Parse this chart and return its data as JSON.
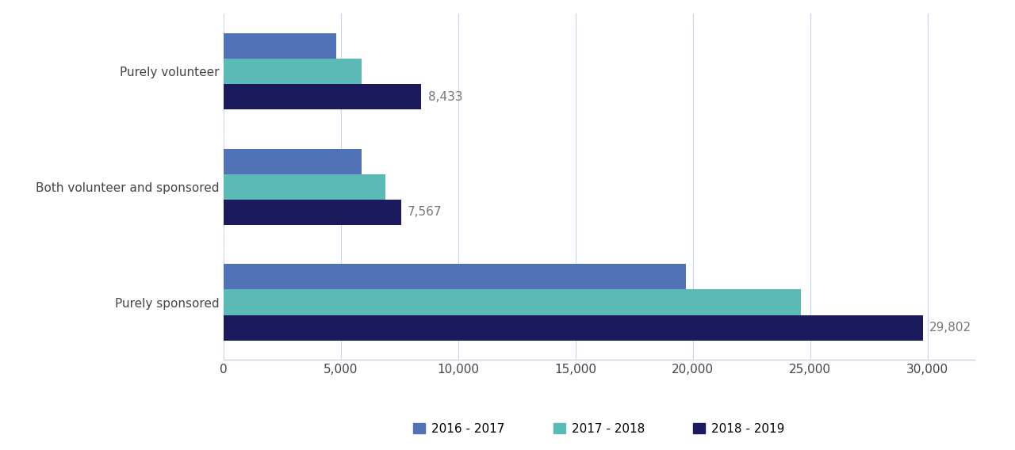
{
  "categories": [
    "Purely sponsored",
    "Both volunteer and sponsored",
    "Purely volunteer"
  ],
  "series": [
    {
      "label": "2016 - 2017",
      "color": "#5272b8",
      "values": [
        19700,
        5900,
        4800
      ]
    },
    {
      "label": "2017 - 2018",
      "color": "#5bbab5",
      "values": [
        24600,
        6900,
        5900
      ]
    },
    {
      "label": "2018 - 2019",
      "color": "#1a1a5c",
      "values": [
        29802,
        7567,
        8433
      ]
    }
  ],
  "annotated_values": [
    29802,
    7567,
    8433
  ],
  "xlim": [
    0,
    32000
  ],
  "xticks": [
    0,
    5000,
    10000,
    15000,
    20000,
    25000,
    30000
  ],
  "xtick_labels": [
    "0",
    "5,000",
    "10,000",
    "15,000",
    "20,000",
    "25,000",
    "30,000"
  ],
  "bar_height": 0.22,
  "background_color": "#ffffff",
  "grid_color": "#c8d4e8",
  "text_color": "#444444",
  "annotation_color": "#777777",
  "annotation_fontsize": 11,
  "legend_fontsize": 11,
  "tick_fontsize": 11
}
